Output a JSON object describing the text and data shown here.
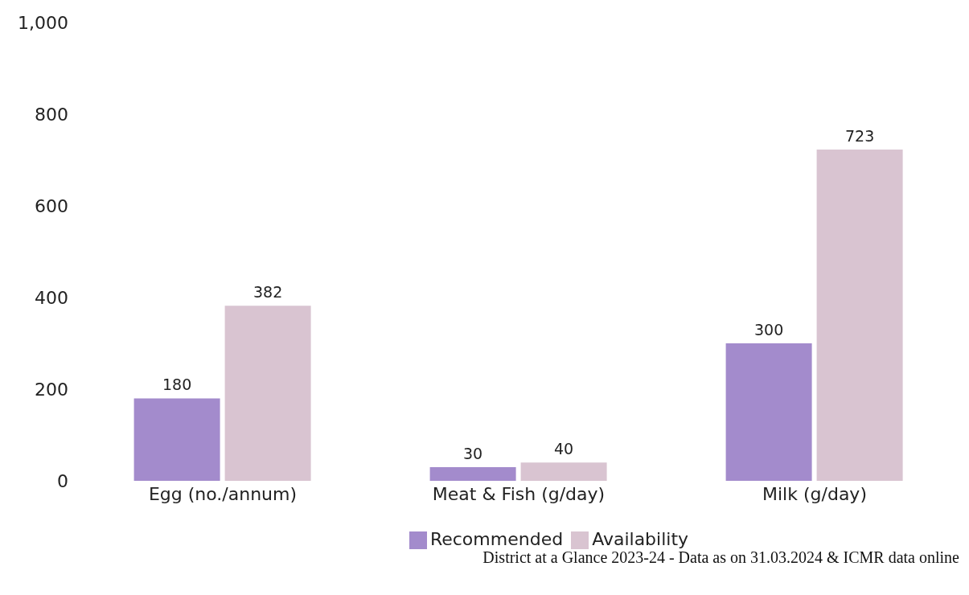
{
  "chart_data": {
    "type": "bar",
    "categories": [
      "Egg (no./annum)",
      "Meat & Fish (g/day)",
      "Milk (g/day)"
    ],
    "series": [
      {
        "name": "Recommended",
        "color": "#a38bcc",
        "values": [
          180,
          30,
          300
        ]
      },
      {
        "name": "Availability",
        "color": "#d9c4d1",
        "values": [
          382,
          40,
          723
        ]
      }
    ],
    "ylim": [
      0,
      1000
    ],
    "yticks": [
      0,
      200,
      400,
      600,
      800,
      {
        "value": 1000,
        "label": "1,000"
      }
    ],
    "grid": false,
    "legend": "bottom",
    "data_labels": true,
    "annotations": [
      "District at a Glance 2023-24 - Data as on 31.03.2024 & ICMR data online"
    ]
  }
}
